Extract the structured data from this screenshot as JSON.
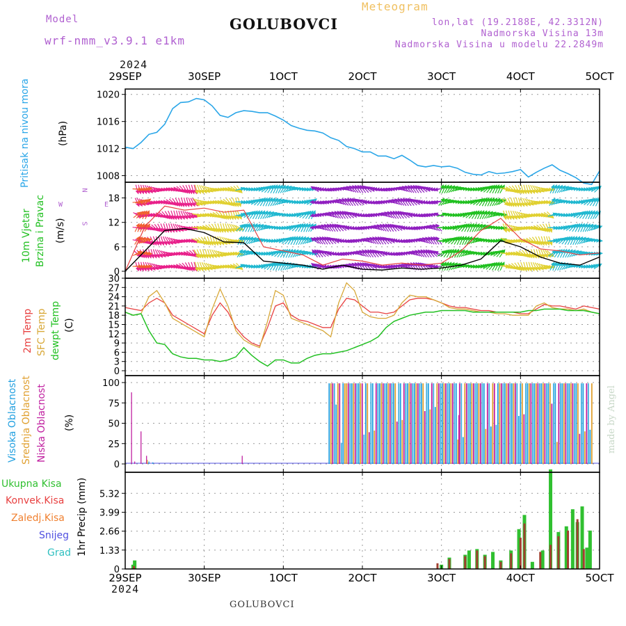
{
  "header": {
    "model_label": "Model",
    "model_name": "wrf-nmm_v3.9.1 e1km",
    "station": "GOLUBOVCI",
    "product": "Meteogram",
    "lonlat": "lon,lat (19.2188E, 42.3312N)",
    "altitude": "Nadmorska Visina 13m",
    "model_altitude": "Nadmorska Visina u modelu 22.2849m",
    "year": "2024",
    "watermark": "made by Angel",
    "footer_station": "GOLUBOVCI"
  },
  "colors": {
    "pressure": "#2aa6e8",
    "t2m": "#e84040",
    "sfc": "#d8a838",
    "dewpt": "#22c022",
    "high": "#22a0e0",
    "mid": "#e0a030",
    "low": "#c020a0",
    "total_precip": "#30c030",
    "conv_precip": "#a04030",
    "purple": "#9a40c8"
  },
  "chart_data": [
    {
      "type": "line",
      "x_ticks": [
        "29SEP",
        "30SEP",
        "1OCT",
        "2OCT",
        "3OCT",
        "4OCT",
        "5OCT"
      ],
      "labels": [
        "Pritisak na nivou mora",
        "(hPa)"
      ],
      "ylim": [
        1006,
        1021
      ],
      "y_ticks": [
        1008,
        1012,
        1016,
        1020
      ],
      "series": [
        {
          "name": "Pritisak na nivou mora",
          "x": [
            0,
            0.1,
            0.2,
            0.3,
            0.4,
            0.5,
            0.6,
            0.7,
            0.8,
            0.9,
            1.0,
            1.1,
            1.2,
            1.3,
            1.4,
            1.5,
            1.6,
            1.7,
            1.8,
            1.9,
            2.0,
            2.1,
            2.2,
            2.3,
            2.4,
            2.5,
            2.6,
            2.7,
            2.8,
            2.9,
            3.0,
            3.1,
            3.2,
            3.3,
            3.4,
            3.5,
            3.6,
            3.7,
            3.8,
            3.9,
            4.0,
            4.1,
            4.2,
            4.3,
            4.4,
            4.5,
            4.6,
            4.7,
            4.8,
            4.9,
            5.0,
            5.1,
            5.2,
            5.3,
            5.4,
            5.5,
            5.6,
            5.7,
            5.8,
            5.9,
            6.0
          ],
          "values": [
            1012.2,
            1012,
            1012.9,
            1014.1,
            1014.4,
            1015.6,
            1017.9,
            1018.8,
            1018.9,
            1019.4,
            1019.2,
            1018.3,
            1016.9,
            1016.6,
            1017.3,
            1017.6,
            1017.5,
            1017.3,
            1017.3,
            1016.8,
            1016.2,
            1015.4,
            1015,
            1014.7,
            1014.6,
            1014.3,
            1013.6,
            1013.2,
            1012.3,
            1012,
            1011.5,
            1011.5,
            1010.9,
            1010.9,
            1010.5,
            1011,
            1010.3,
            1009.5,
            1009.3,
            1009.5,
            1009.3,
            1009.4,
            1009.1,
            1008.5,
            1008.2,
            1008.1,
            1008.6,
            1008.3,
            1008.4,
            1008.6,
            1008.9,
            1007.8,
            1008.5,
            1009.1,
            1009.6,
            1008.8,
            1008.3,
            1007.7,
            1006.9,
            1006.7,
            1008.7
          ]
        }
      ]
    },
    {
      "type": "line",
      "labels": [
        "10m Vjetar",
        "Brzina i Pravac",
        "(m/s)"
      ],
      "compass": {
        "n": "N",
        "s": "S",
        "w": "W",
        "e": "E"
      },
      "ylim": [
        0,
        21
      ],
      "y_ticks": [
        0,
        6,
        12,
        18
      ],
      "series": [
        {
          "name": "brzina",
          "x": [
            0,
            0.25,
            0.5,
            0.75,
            1.0,
            1.25,
            1.5,
            1.75,
            2.0,
            2.25,
            2.5,
            2.75,
            3.0,
            3.25,
            3.5,
            3.75,
            4.0,
            4.25,
            4.5,
            4.75,
            5.0,
            5.25,
            5.5,
            5.75,
            6.0
          ],
          "values": [
            0.0,
            5.0,
            10.0,
            10.5,
            9.5,
            7.2,
            7.0,
            2.5,
            2.0,
            1.5,
            0.5,
            1.5,
            0.5,
            0.3,
            0.8,
            0.5,
            0.8,
            1.5,
            3.0,
            7.5,
            6.0,
            3.5,
            2.0,
            1.5,
            3.5
          ]
        },
        {
          "name": "udari",
          "x": [
            0,
            0.25,
            0.5,
            0.75,
            1.0,
            1.25,
            1.5,
            1.75,
            2.0,
            2.25,
            2.5,
            2.75,
            3.0,
            3.25,
            3.5,
            3.75,
            4.0,
            4.25,
            4.5,
            4.75,
            5.0,
            5.25,
            5.5,
            5.75,
            6.0
          ],
          "values": [
            0.0,
            11.0,
            16.0,
            15.0,
            15.5,
            14.5,
            15.0,
            6.0,
            5.0,
            4.0,
            1.5,
            3.0,
            2.5,
            1.5,
            2.0,
            1.5,
            2.0,
            5.0,
            10.0,
            13.0,
            8.0,
            5.5,
            5.0,
            4.0,
            4.5
          ]
        }
      ]
    },
    {
      "type": "line",
      "labels": [
        "2m Temp",
        "SFC Temp",
        "dewpt Temp",
        "(C)"
      ],
      "ylim": [
        0,
        30
      ],
      "y_ticks": [
        0,
        3,
        6,
        9,
        12,
        15,
        18,
        21,
        24,
        27,
        30
      ],
      "series": [
        {
          "name": "2m Temp",
          "x": [
            0,
            0.1,
            0.2,
            0.3,
            0.4,
            0.5,
            0.6,
            0.7,
            0.8,
            0.9,
            1.0,
            1.1,
            1.2,
            1.3,
            1.4,
            1.5,
            1.6,
            1.7,
            1.8,
            1.9,
            2.0,
            2.1,
            2.2,
            2.3,
            2.4,
            2.5,
            2.6,
            2.7,
            2.8,
            2.9,
            3.0,
            3.1,
            3.2,
            3.3,
            3.4,
            3.5,
            3.6,
            3.7,
            3.8,
            3.9,
            4.0,
            4.1,
            4.2,
            4.3,
            4.4,
            4.5,
            4.6,
            4.7,
            4.8,
            4.9,
            5.0,
            5.1,
            5.2,
            5.3,
            5.4,
            5.5,
            5.6,
            5.7,
            5.8,
            5.9,
            6.0
          ],
          "values": [
            20.5,
            20,
            19.5,
            22,
            23.5,
            22,
            18,
            16.5,
            15,
            13.5,
            12,
            18,
            22,
            19,
            14,
            11,
            9,
            8,
            14,
            21,
            22,
            18,
            16.5,
            16,
            15,
            14,
            14,
            20,
            23.5,
            23,
            21,
            19,
            19,
            18.5,
            19,
            21,
            23,
            23.5,
            23.5,
            23,
            22,
            21,
            20.5,
            20.5,
            20,
            19.5,
            19.5,
            19,
            19,
            19,
            18.5,
            18.5,
            20,
            21.5,
            21,
            21,
            20.5,
            20,
            21,
            20.5,
            20
          ]
        },
        {
          "name": "SFC Temp",
          "x": [
            0,
            0.1,
            0.2,
            0.3,
            0.4,
            0.5,
            0.6,
            0.7,
            0.8,
            0.9,
            1.0,
            1.1,
            1.2,
            1.3,
            1.4,
            1.5,
            1.6,
            1.7,
            1.8,
            1.9,
            2.0,
            2.1,
            2.2,
            2.3,
            2.4,
            2.5,
            2.6,
            2.7,
            2.8,
            2.9,
            3.0,
            3.1,
            3.2,
            3.3,
            3.4,
            3.5,
            3.6,
            3.7,
            3.8,
            3.9,
            4.0,
            4.1,
            4.2,
            4.3,
            4.4,
            4.5,
            4.6,
            4.7,
            4.8,
            4.9,
            5.0,
            5.1,
            5.2,
            5.3,
            5.4,
            5.5,
            5.6,
            5.7,
            5.8,
            5.9,
            6.0
          ],
          "values": [
            19,
            18,
            18.5,
            24,
            26,
            22,
            17,
            15.5,
            14,
            12.5,
            11,
            20,
            26.5,
            21,
            13,
            10,
            8.5,
            7.5,
            16,
            26,
            24.5,
            17,
            16,
            15,
            14,
            13,
            11,
            22,
            28.5,
            26,
            19,
            17.5,
            17,
            17,
            18,
            22,
            24.5,
            24,
            24,
            23,
            22,
            20.5,
            20,
            20,
            19.5,
            19,
            19,
            18.5,
            18.5,
            18,
            18,
            18,
            21,
            22,
            20.5,
            20,
            20,
            19.5,
            20,
            19,
            18.5
          ]
        },
        {
          "name": "dewpt Temp",
          "x": [
            0,
            0.1,
            0.2,
            0.3,
            0.4,
            0.5,
            0.6,
            0.7,
            0.8,
            0.9,
            1.0,
            1.1,
            1.2,
            1.3,
            1.4,
            1.5,
            1.6,
            1.7,
            1.8,
            1.9,
            2.0,
            2.1,
            2.2,
            2.3,
            2.4,
            2.5,
            2.6,
            2.7,
            2.8,
            2.9,
            3.0,
            3.1,
            3.2,
            3.3,
            3.4,
            3.5,
            3.6,
            3.7,
            3.8,
            3.9,
            4.0,
            4.1,
            4.2,
            4.3,
            4.4,
            4.5,
            4.6,
            4.7,
            4.8,
            4.9,
            5.0,
            5.1,
            5.2,
            5.3,
            5.4,
            5.5,
            5.6,
            5.7,
            5.8,
            5.9,
            6.0
          ],
          "values": [
            19,
            18,
            18.5,
            13,
            9,
            8.5,
            5.5,
            4.5,
            4,
            4,
            3.5,
            3.5,
            3,
            3.5,
            4.5,
            7.5,
            5,
            3,
            1.5,
            3.5,
            3.5,
            2.5,
            2.5,
            4,
            5,
            5.5,
            5.5,
            6,
            6.5,
            7.5,
            8.5,
            9.5,
            11,
            14,
            16,
            17,
            18,
            18.5,
            19,
            19,
            19.5,
            19.5,
            19.5,
            19.5,
            19,
            19,
            19,
            19,
            19,
            19,
            19,
            19.5,
            19.5,
            20,
            20,
            20,
            19.5,
            19.5,
            19.5,
            19,
            18.5
          ]
        }
      ]
    },
    {
      "type": "bar",
      "labels": [
        "Visoka Oblacnost",
        "Srednja Oblacnost",
        "Niska Oblacnost",
        "(%)"
      ],
      "ylim": [
        0,
        100
      ],
      "y_ticks": [
        0,
        25,
        50,
        75,
        100
      ],
      "series": [
        {
          "name": "Niska Oblacnost",
          "x": [
            0.08,
            0.12,
            0.2,
            0.27,
            1.48,
            4.22
          ],
          "values": [
            88,
            3,
            40,
            10,
            10,
            60
          ]
        },
        {
          "name": "Visoka Oblacnost",
          "x": [
            0.3,
            0.35
          ],
          "values": [
            3,
            2
          ]
        },
        {
          "name": "Srednja Oblacnost",
          "x": [
            0.28
          ],
          "values": [
            5
          ]
        }
      ]
    },
    {
      "type": "bar",
      "labels": [
        "Ukupna Kisa",
        "Konvek.Kisa",
        "Zaledj.Kisa",
        "Snijeg",
        "Grad",
        "1hr Precip (mm)"
      ],
      "ylim": [
        0,
        6.8
      ],
      "y_ticks": [
        0,
        1.33,
        2.66,
        3.99,
        5.32
      ],
      "x_ticks": [
        "29SEP",
        "30SEP",
        "1OCT",
        "2OCT",
        "3OCT",
        "4OCT",
        "5OCT"
      ],
      "series": [
        {
          "name": "Ukupna Kisa",
          "x": [
            0.1,
            0.12,
            4.0,
            4.1,
            4.3,
            4.35,
            4.45,
            4.55,
            4.65,
            4.75,
            4.88,
            4.98,
            5.05,
            5.15,
            5.28,
            5.38,
            5.48,
            5.58,
            5.66,
            5.72,
            5.78,
            5.84,
            5.88
          ],
          "values": [
            0.3,
            0.6,
            0.3,
            0.8,
            1.0,
            1.3,
            1.4,
            1.0,
            1.2,
            0.6,
            1.3,
            2.8,
            3.8,
            0.5,
            1.3,
            7.0,
            2.6,
            3.0,
            4.2,
            3.3,
            4.4,
            1.5,
            2.7
          ]
        },
        {
          "name": "Konvek.Kisa",
          "x": [
            0.11,
            3.95,
            4.1,
            4.3,
            4.45,
            4.55,
            4.75,
            4.88,
            5.0,
            5.05,
            5.25,
            5.38,
            5.48,
            5.6,
            5.72,
            5.8
          ],
          "values": [
            0.2,
            0.4,
            0.7,
            0.9,
            1.3,
            0.9,
            0.5,
            1.1,
            2.2,
            3.2,
            1.2,
            1.7,
            2.3,
            2.7,
            3.5,
            1.4
          ]
        }
      ]
    }
  ]
}
